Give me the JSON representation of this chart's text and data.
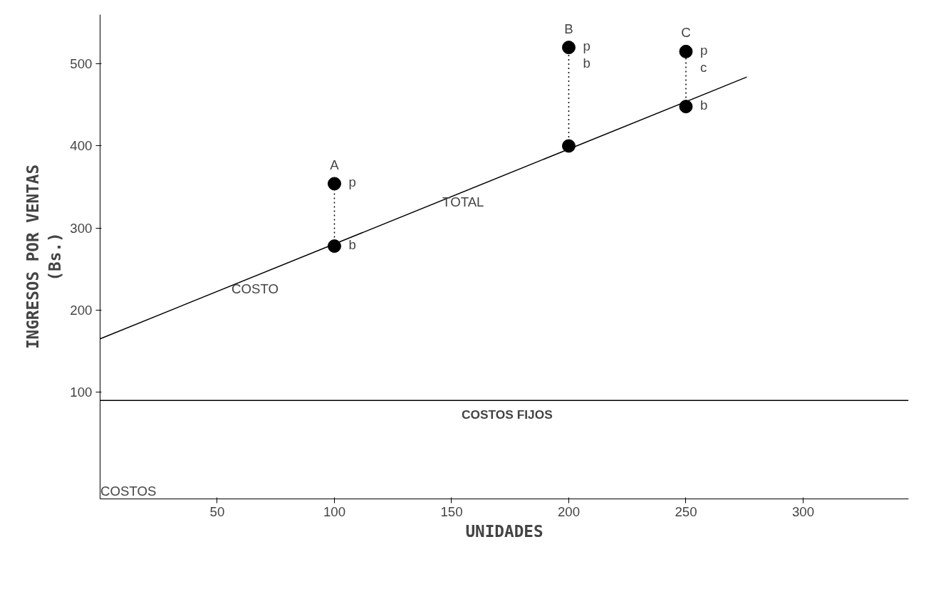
{
  "chart_data": {
    "type": "line",
    "xlabel": "UNIDADES",
    "ylabel": "INGRESOS POR VENTAS\n(Bs.)",
    "xlim": [
      0,
      345
    ],
    "ylim": [
      -30,
      560
    ],
    "xticks": [
      50,
      100,
      150,
      200,
      250,
      300
    ],
    "yticks": [
      100,
      200,
      300,
      400,
      500
    ],
    "grid": false,
    "series": [
      {
        "color": "#000000",
        "x": [
          0,
          276
        ],
        "values": [
          165,
          484
        ],
        "marker": "none",
        "line_style": "solid"
      },
      {
        "color": "#000000",
        "x": [
          100,
          100
        ],
        "values": [
          278,
          354
        ],
        "marker": "none",
        "line_style": "dotted"
      },
      {
        "color": "#000000",
        "x": [
          200,
          200
        ],
        "values": [
          400,
          520
        ],
        "marker": "none",
        "line_style": "dotted"
      },
      {
        "color": "#000000",
        "x": [
          250,
          250
        ],
        "values": [
          448,
          515
        ],
        "marker": "none",
        "line_style": "dotted"
      },
      {
        "type": "scatter",
        "color": "#000000",
        "x": [
          100,
          100,
          200,
          200,
          250,
          250
        ],
        "values": [
          278,
          354,
          400,
          520,
          448,
          515
        ],
        "marker": "circle"
      }
    ],
    "ref_lines": [
      {
        "axis": "y",
        "value": 90,
        "label": "COSTOS FIJOS",
        "color": "#000000",
        "line_style": "solid"
      }
    ],
    "annotations": [
      {
        "text": "A",
        "x": 100,
        "y": 354
      },
      {
        "text": "p",
        "x": 100,
        "y": 354
      },
      {
        "text": "b",
        "x": 100,
        "y": 278
      },
      {
        "text": "B",
        "x": 200,
        "y": 520
      },
      {
        "text": "p",
        "x": 200,
        "y": 520
      },
      {
        "text": "b",
        "x": 200,
        "y": 520
      },
      {
        "text": "C",
        "x": 250,
        "y": 515
      },
      {
        "text": "p",
        "x": 250,
        "y": 515
      },
      {
        "text": "c",
        "x": 250,
        "y": 515
      },
      {
        "text": "b",
        "x": 250,
        "y": 448
      },
      {
        "text": "COSTO",
        "x": 50,
        "y": 224
      },
      {
        "text": "TOTAL",
        "x": 140,
        "y": 330
      },
      "COSTOS"
    ]
  }
}
